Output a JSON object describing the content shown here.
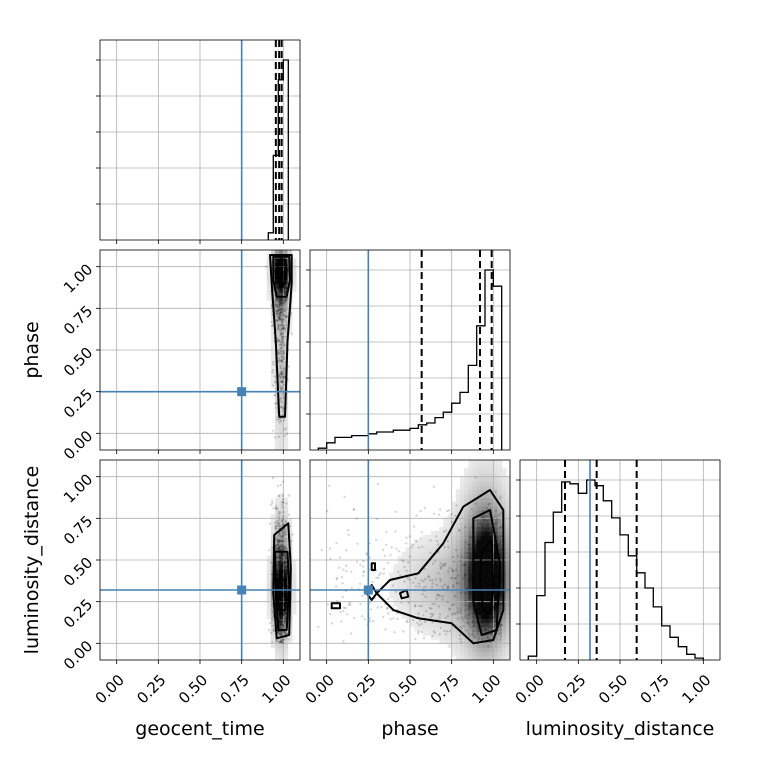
{
  "chart_data": {
    "type": "scatter",
    "parameters": [
      "geocent_time",
      "phase",
      "luminosity_distance"
    ],
    "axis_range": [
      -0.1,
      1.1
    ],
    "ticks": [
      0.0,
      0.25,
      0.5,
      0.75,
      1.0
    ],
    "tick_labels": [
      "0.00",
      "0.25",
      "0.50",
      "0.75",
      "1.00"
    ],
    "grid": true,
    "colors": {
      "truth": "#4682b4",
      "lines": "#000000"
    },
    "truths": {
      "geocent_time": 0.75,
      "phase": 0.25,
      "luminosity_distance": 0.32
    },
    "quantiles": {
      "geocent_time": [
        0.955,
        0.975,
        0.99
      ],
      "phase": [
        0.57,
        0.92,
        0.99
      ],
      "luminosity_distance": [
        0.17,
        0.36,
        0.6
      ]
    },
    "histograms": {
      "geocent_time": {
        "edges": [
          0.91,
          0.94,
          0.97,
          1.0,
          1.03
        ],
        "values": [
          0.04,
          0.47,
          0.89,
          1.0
        ]
      },
      "phase": {
        "edges": [
          -0.05,
          0.0,
          0.05,
          0.1,
          0.15,
          0.2,
          0.25,
          0.3,
          0.35,
          0.4,
          0.45,
          0.5,
          0.55,
          0.6,
          0.65,
          0.7,
          0.75,
          0.8,
          0.85,
          0.9,
          0.95,
          1.0,
          1.05
        ],
        "values": [
          0.01,
          0.04,
          0.07,
          0.07,
          0.08,
          0.08,
          0.09,
          0.1,
          0.1,
          0.11,
          0.11,
          0.12,
          0.14,
          0.15,
          0.18,
          0.21,
          0.26,
          0.32,
          0.47,
          0.69,
          1.0,
          0.91
        ]
      },
      "luminosity_distance": {
        "edges": [
          -0.05,
          0.0,
          0.05,
          0.1,
          0.15,
          0.2,
          0.25,
          0.3,
          0.35,
          0.4,
          0.45,
          0.5,
          0.55,
          0.6,
          0.65,
          0.7,
          0.75,
          0.8,
          0.85,
          0.9,
          0.95,
          1.0
        ],
        "values": [
          0.02,
          0.34,
          0.62,
          0.78,
          0.94,
          0.93,
          0.88,
          0.95,
          0.92,
          0.84,
          0.75,
          0.66,
          0.55,
          0.46,
          0.38,
          0.28,
          0.18,
          0.12,
          0.07,
          0.03,
          0.01
        ]
      }
    },
    "panels_2d": [
      {
        "x": "geocent_time",
        "y": "phase",
        "row": 1,
        "col": 0
      },
      {
        "x": "geocent_time",
        "y": "luminosity_distance",
        "row": 2,
        "col": 0
      },
      {
        "x": "phase",
        "y": "luminosity_distance",
        "row": 2,
        "col": 1
      }
    ]
  }
}
